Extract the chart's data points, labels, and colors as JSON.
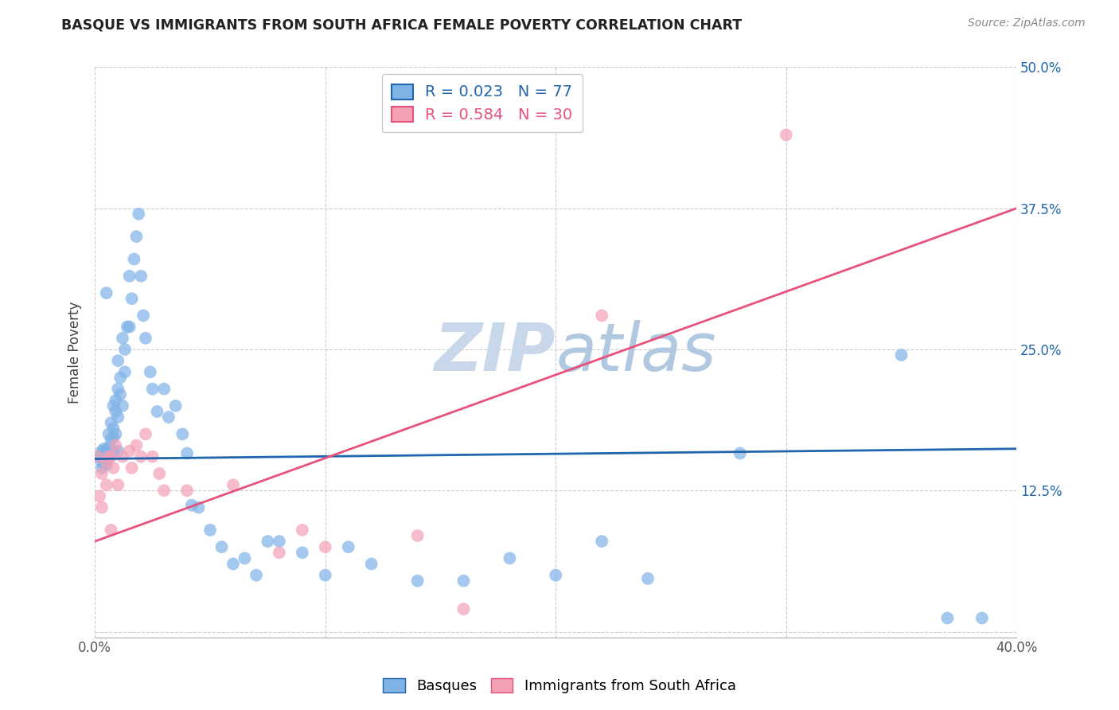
{
  "title": "BASQUE VS IMMIGRANTS FROM SOUTH AFRICA FEMALE POVERTY CORRELATION CHART",
  "source": "Source: ZipAtlas.com",
  "ylabel": "Female Poverty",
  "xlim": [
    0.0,
    0.4
  ],
  "ylim": [
    -0.005,
    0.5
  ],
  "xticks": [
    0.0,
    0.1,
    0.2,
    0.3,
    0.4
  ],
  "yticks": [
    0.0,
    0.125,
    0.25,
    0.375,
    0.5
  ],
  "xticklabels": [
    "0.0%",
    "",
    "",
    "",
    "40.0%"
  ],
  "yticklabels_right": [
    "",
    "12.5%",
    "25.0%",
    "37.5%",
    "50.0%"
  ],
  "legend_labels": [
    "Basques",
    "Immigrants from South Africa"
  ],
  "R_blue": 0.023,
  "N_blue": 77,
  "R_pink": 0.584,
  "N_pink": 30,
  "blue_color": "#7fb3e8",
  "pink_color": "#f4a0b5",
  "line_blue_color": "#2166ac",
  "line_pink_color": "#e8527a",
  "watermark_color": "#d0dce8",
  "background_color": "#ffffff",
  "grid_color": "#cccccc",
  "blue_scatter_x": [
    0.002,
    0.002,
    0.003,
    0.003,
    0.003,
    0.004,
    0.004,
    0.004,
    0.005,
    0.005,
    0.005,
    0.005,
    0.005,
    0.006,
    0.006,
    0.006,
    0.007,
    0.007,
    0.007,
    0.008,
    0.008,
    0.008,
    0.008,
    0.009,
    0.009,
    0.009,
    0.01,
    0.01,
    0.01,
    0.01,
    0.011,
    0.011,
    0.012,
    0.012,
    0.013,
    0.013,
    0.014,
    0.015,
    0.015,
    0.016,
    0.017,
    0.018,
    0.019,
    0.02,
    0.021,
    0.022,
    0.024,
    0.025,
    0.027,
    0.03,
    0.032,
    0.035,
    0.038,
    0.04,
    0.042,
    0.045,
    0.05,
    0.055,
    0.06,
    0.065,
    0.07,
    0.075,
    0.08,
    0.09,
    0.1,
    0.11,
    0.12,
    0.14,
    0.16,
    0.18,
    0.2,
    0.22,
    0.24,
    0.28,
    0.35,
    0.37,
    0.385
  ],
  "blue_scatter_y": [
    0.155,
    0.155,
    0.16,
    0.15,
    0.145,
    0.162,
    0.155,
    0.152,
    0.3,
    0.158,
    0.16,
    0.152,
    0.148,
    0.175,
    0.163,
    0.155,
    0.185,
    0.17,
    0.158,
    0.2,
    0.18,
    0.172,
    0.16,
    0.205,
    0.195,
    0.175,
    0.24,
    0.215,
    0.19,
    0.16,
    0.225,
    0.21,
    0.26,
    0.2,
    0.25,
    0.23,
    0.27,
    0.315,
    0.27,
    0.295,
    0.33,
    0.35,
    0.37,
    0.315,
    0.28,
    0.26,
    0.23,
    0.215,
    0.195,
    0.215,
    0.19,
    0.2,
    0.175,
    0.158,
    0.112,
    0.11,
    0.09,
    0.075,
    0.06,
    0.065,
    0.05,
    0.08,
    0.08,
    0.07,
    0.05,
    0.075,
    0.06,
    0.045,
    0.045,
    0.065,
    0.05,
    0.08,
    0.047,
    0.158,
    0.245,
    0.012,
    0.012
  ],
  "pink_scatter_x": [
    0.001,
    0.002,
    0.003,
    0.003,
    0.005,
    0.005,
    0.006,
    0.007,
    0.007,
    0.008,
    0.009,
    0.01,
    0.012,
    0.015,
    0.016,
    0.018,
    0.02,
    0.022,
    0.025,
    0.028,
    0.03,
    0.04,
    0.06,
    0.08,
    0.09,
    0.1,
    0.14,
    0.16,
    0.22,
    0.3
  ],
  "pink_scatter_y": [
    0.155,
    0.12,
    0.14,
    0.11,
    0.15,
    0.13,
    0.155,
    0.09,
    0.155,
    0.145,
    0.165,
    0.13,
    0.155,
    0.16,
    0.145,
    0.165,
    0.155,
    0.175,
    0.155,
    0.14,
    0.125,
    0.125,
    0.13,
    0.07,
    0.09,
    0.075,
    0.085,
    0.02,
    0.28,
    0.44
  ],
  "blue_line_x": [
    0.0,
    0.4
  ],
  "blue_line_y": [
    0.153,
    0.162
  ],
  "pink_line_x": [
    0.0,
    0.4
  ],
  "pink_line_y": [
    0.08,
    0.375
  ]
}
